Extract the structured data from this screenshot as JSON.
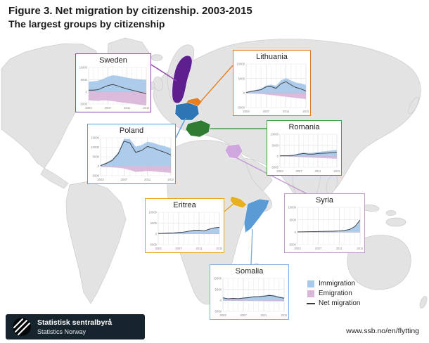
{
  "header": {
    "title": "Figure 3. Net migration by citizenship. 2003-2015",
    "subtitle": "The largest groups by citizenship"
  },
  "legend": {
    "items": [
      {
        "label": "Immigration",
        "color": "#a9c9ea"
      },
      {
        "label": "Emigration",
        "color": "#d9b6d9"
      },
      {
        "label": "Net migration",
        "color": "#3a3a3a"
      }
    ]
  },
  "footer": {
    "org_name_native": "Statistisk sentralbyrå",
    "org_name_english": "Statistics Norway",
    "url": "www.ssb.no/en/flytting"
  },
  "chart_data": [
    {
      "country": "Sweden",
      "type": "area",
      "color": "#8e44ad",
      "map_color": "#5e1f8f",
      "x": [
        2003,
        2004,
        2005,
        2006,
        2007,
        2008,
        2009,
        2010,
        2011,
        2012,
        2013,
        2014,
        2015
      ],
      "xticks": [
        2003,
        2007,
        2011,
        2015
      ],
      "ylim": [
        -5000,
        10000
      ],
      "yticks": [
        10000,
        5000,
        0,
        -5000
      ],
      "series": [
        {
          "name": "Immigration",
          "values": [
            4200,
            4300,
            4600,
            5300,
            6200,
            6800,
            6600,
            6200,
            5800,
            5500,
            5300,
            5100,
            4900
          ]
        },
        {
          "name": "Emigration",
          "values": [
            3500,
            3600,
            3700,
            3500,
            3600,
            3800,
            4100,
            4400,
            4600,
            4800,
            5100,
            5400,
            5600
          ]
        },
        {
          "name": "Net migration",
          "values": [
            700,
            700,
            900,
            1800,
            2600,
            3000,
            2500,
            1800,
            1200,
            700,
            200,
            -300,
            -700
          ]
        }
      ]
    },
    {
      "country": "Lithuania",
      "type": "area",
      "color": "#e67e22",
      "map_color": "#e67e22",
      "x": [
        2003,
        2004,
        2005,
        2006,
        2007,
        2008,
        2009,
        2010,
        2011,
        2012,
        2013,
        2014,
        2015
      ],
      "xticks": [
        2003,
        2007,
        2011,
        2015
      ],
      "ylim": [
        -5000,
        10000
      ],
      "yticks": [
        10000,
        5000,
        0,
        -5000
      ],
      "series": [
        {
          "name": "Immigration",
          "values": [
            300,
            700,
            1100,
            1500,
            2600,
            2900,
            2500,
            4300,
            5200,
            4300,
            3600,
            3300,
            2800
          ]
        },
        {
          "name": "Emigration",
          "values": [
            100,
            150,
            250,
            350,
            500,
            700,
            900,
            1100,
            1300,
            1500,
            1700,
            1900,
            2100
          ]
        },
        {
          "name": "Net migration",
          "values": [
            200,
            550,
            850,
            1150,
            2100,
            2200,
            1600,
            3200,
            3900,
            2800,
            1900,
            1400,
            700
          ]
        }
      ]
    },
    {
      "country": "Poland",
      "type": "area",
      "color": "#5b9bd5",
      "map_color": "#2e75b6",
      "x": [
        2003,
        2004,
        2005,
        2006,
        2007,
        2008,
        2009,
        2010,
        2011,
        2012,
        2013,
        2014,
        2015
      ],
      "xticks": [
        2003,
        2007,
        2011,
        2015
      ],
      "ylim": [
        -5000,
        15000
      ],
      "yticks": [
        15000,
        10000,
        5000,
        0,
        -5000
      ],
      "series": [
        {
          "name": "Immigration",
          "values": [
            700,
            2000,
            3700,
            7300,
            14400,
            14300,
            10300,
            11100,
            12900,
            12300,
            11300,
            10500,
            9400
          ]
        },
        {
          "name": "Emigration",
          "values": [
            400,
            500,
            600,
            800,
            1200,
            2000,
            3000,
            2800,
            2500,
            2700,
            3000,
            3200,
            3500
          ]
        },
        {
          "name": "Net migration",
          "values": [
            300,
            1500,
            3100,
            6500,
            13200,
            12300,
            7300,
            8300,
            10400,
            9600,
            8300,
            7300,
            5900
          ]
        }
      ]
    },
    {
      "country": "Romania",
      "type": "area",
      "color": "#43a047",
      "map_color": "#2e7d32",
      "x": [
        2003,
        2004,
        2005,
        2006,
        2007,
        2008,
        2009,
        2010,
        2011,
        2012,
        2013,
        2014,
        2015
      ],
      "xticks": [
        2003,
        2007,
        2011,
        2015
      ],
      "ylim": [
        -5000,
        10000
      ],
      "yticks": [
        10000,
        5000,
        0,
        -5000
      ],
      "series": [
        {
          "name": "Immigration",
          "values": [
            300,
            400,
            500,
            700,
            1300,
            1700,
            1500,
            1600,
            2000,
            2200,
            2400,
            2700,
            2900
          ]
        },
        {
          "name": "Emigration",
          "values": [
            100,
            150,
            200,
            250,
            350,
            450,
            550,
            650,
            750,
            850,
            950,
            1050,
            1150
          ]
        },
        {
          "name": "Net migration",
          "values": [
            200,
            250,
            300,
            450,
            950,
            1250,
            950,
            950,
            1250,
            1350,
            1450,
            1650,
            1750
          ]
        }
      ]
    },
    {
      "country": "Eritrea",
      "type": "area",
      "color": "#e2a712",
      "map_color": "#e8b021",
      "x": [
        2003,
        2004,
        2005,
        2006,
        2007,
        2008,
        2009,
        2010,
        2011,
        2012,
        2013,
        2014,
        2015
      ],
      "xticks": [
        2003,
        2007,
        2011,
        2015
      ],
      "ylim": [
        -5000,
        10000
      ],
      "yticks": [
        10000,
        5000,
        0,
        -5000
      ],
      "series": [
        {
          "name": "Immigration",
          "values": [
            200,
            300,
            400,
            500,
            700,
            900,
            1300,
            1700,
            1800,
            1500,
            2300,
            2900,
            3200
          ]
        },
        {
          "name": "Emigration",
          "values": [
            50,
            50,
            60,
            60,
            70,
            80,
            90,
            100,
            110,
            120,
            130,
            140,
            150
          ]
        },
        {
          "name": "Net migration",
          "values": [
            150,
            250,
            340,
            440,
            630,
            820,
            1210,
            1600,
            1690,
            1380,
            2170,
            2760,
            3050
          ]
        }
      ]
    },
    {
      "country": "Syria",
      "type": "area",
      "color": "#c39bd3",
      "map_color": "#cfa6de",
      "x": [
        2003,
        2004,
        2005,
        2006,
        2007,
        2008,
        2009,
        2010,
        2011,
        2012,
        2013,
        2014,
        2015
      ],
      "xticks": [
        2003,
        2007,
        2011,
        2015
      ],
      "ylim": [
        -5000,
        10000
      ],
      "yticks": [
        10000,
        5000,
        0,
        -5000
      ],
      "series": [
        {
          "name": "Immigration",
          "values": [
            150,
            200,
            250,
            300,
            350,
            400,
            450,
            500,
            600,
            800,
            1200,
            2400,
            5000
          ]
        },
        {
          "name": "Emigration",
          "values": [
            50,
            60,
            60,
            70,
            70,
            80,
            80,
            90,
            90,
            100,
            100,
            110,
            120
          ]
        },
        {
          "name": "Net migration",
          "values": [
            100,
            140,
            190,
            230,
            280,
            320,
            370,
            410,
            510,
            700,
            1100,
            2290,
            4880
          ]
        }
      ]
    },
    {
      "country": "Somalia",
      "type": "area",
      "color": "#7fb2de",
      "map_color": "#5b9bd5",
      "x": [
        2003,
        2004,
        2005,
        2006,
        2007,
        2008,
        2009,
        2010,
        2011,
        2012,
        2013,
        2014,
        2015
      ],
      "xticks": [
        2003,
        2007,
        2011,
        2015
      ],
      "ylim": [
        -5000,
        10000
      ],
      "yticks": [
        10000,
        5000,
        0,
        -5000
      ],
      "series": [
        {
          "name": "Immigration",
          "values": [
            1300,
            900,
            1100,
            1000,
            1300,
            1500,
            1900,
            2000,
            2200,
            2600,
            2400,
            1800,
            1400
          ]
        },
        {
          "name": "Emigration",
          "values": [
            150,
            180,
            200,
            220,
            250,
            280,
            300,
            330,
            360,
            380,
            400,
            420,
            450
          ]
        },
        {
          "name": "Net migration",
          "values": [
            1150,
            720,
            900,
            780,
            1050,
            1220,
            1600,
            1670,
            1840,
            2220,
            2000,
            1380,
            950
          ]
        }
      ]
    }
  ]
}
